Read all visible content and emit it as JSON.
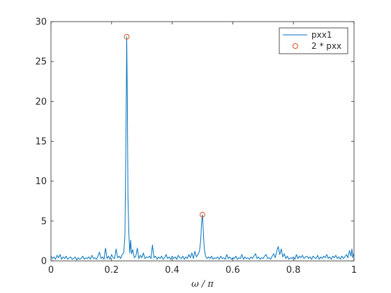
{
  "chart_data": {
    "type": "line",
    "title": "",
    "xlabel": "ω / π",
    "ylabel": "",
    "xlim": [
      0,
      1
    ],
    "ylim": [
      0,
      30
    ],
    "xticks": [
      0,
      0.2,
      0.4,
      0.6,
      0.8,
      1
    ],
    "xtick_labels": [
      "0",
      "0.2",
      "0.4",
      "0.6",
      "0.8",
      "1"
    ],
    "yticks": [
      0,
      5,
      10,
      15,
      20,
      25,
      30
    ],
    "ytick_labels": [
      "0",
      "5",
      "10",
      "15",
      "20",
      "25",
      "30"
    ],
    "grid": false,
    "legend_position": "top-right",
    "series": [
      {
        "name": "pxx1",
        "kind": "line",
        "color": "#0072BD",
        "points": [
          [
            0.0,
            0.6
          ],
          [
            0.005,
            0.3
          ],
          [
            0.01,
            0.5
          ],
          [
            0.015,
            0.2
          ],
          [
            0.02,
            0.7
          ],
          [
            0.025,
            0.4
          ],
          [
            0.03,
            0.8
          ],
          [
            0.035,
            0.2
          ],
          [
            0.04,
            0.5
          ],
          [
            0.045,
            0.3
          ],
          [
            0.05,
            0.6
          ],
          [
            0.055,
            0.2
          ],
          [
            0.06,
            0.4
          ],
          [
            0.065,
            0.5
          ],
          [
            0.07,
            0.2
          ],
          [
            0.075,
            0.3
          ],
          [
            0.08,
            0.5
          ],
          [
            0.085,
            0.1
          ],
          [
            0.09,
            0.4
          ],
          [
            0.095,
            0.2
          ],
          [
            0.1,
            0.3
          ],
          [
            0.105,
            0.6
          ],
          [
            0.11,
            0.2
          ],
          [
            0.115,
            0.4
          ],
          [
            0.12,
            0.3
          ],
          [
            0.125,
            0.5
          ],
          [
            0.13,
            0.2
          ],
          [
            0.135,
            0.7
          ],
          [
            0.14,
            0.3
          ],
          [
            0.145,
            0.4
          ],
          [
            0.15,
            0.2
          ],
          [
            0.155,
            0.6
          ],
          [
            0.16,
            1.1
          ],
          [
            0.165,
            0.3
          ],
          [
            0.17,
            0.5
          ],
          [
            0.175,
            0.2
          ],
          [
            0.18,
            1.6
          ],
          [
            0.185,
            0.3
          ],
          [
            0.19,
            0.6
          ],
          [
            0.195,
            0.2
          ],
          [
            0.2,
            0.8
          ],
          [
            0.205,
            0.4
          ],
          [
            0.21,
            0.3
          ],
          [
            0.215,
            1.5
          ],
          [
            0.22,
            0.4
          ],
          [
            0.225,
            0.6
          ],
          [
            0.23,
            0.3
          ],
          [
            0.235,
            0.8
          ],
          [
            0.24,
            1.0
          ],
          [
            0.244,
            3.0
          ],
          [
            0.247,
            14.0
          ],
          [
            0.249,
            22.5
          ],
          [
            0.25,
            28.1
          ],
          [
            0.252,
            20.0
          ],
          [
            0.254,
            8.0
          ],
          [
            0.257,
            3.5
          ],
          [
            0.26,
            1.0
          ],
          [
            0.263,
            2.6
          ],
          [
            0.266,
            0.9
          ],
          [
            0.27,
            1.4
          ],
          [
            0.275,
            0.4
          ],
          [
            0.28,
            0.6
          ],
          [
            0.285,
            1.6
          ],
          [
            0.29,
            0.3
          ],
          [
            0.295,
            0.7
          ],
          [
            0.3,
            0.4
          ],
          [
            0.305,
            1.0
          ],
          [
            0.31,
            0.3
          ],
          [
            0.315,
            0.5
          ],
          [
            0.32,
            0.4
          ],
          [
            0.325,
            0.6
          ],
          [
            0.33,
            0.3
          ],
          [
            0.335,
            2.0
          ],
          [
            0.34,
            0.4
          ],
          [
            0.345,
            0.6
          ],
          [
            0.35,
            0.2
          ],
          [
            0.355,
            0.5
          ],
          [
            0.36,
            0.3
          ],
          [
            0.365,
            0.6
          ],
          [
            0.37,
            0.2
          ],
          [
            0.375,
            0.4
          ],
          [
            0.38,
            0.8
          ],
          [
            0.385,
            0.3
          ],
          [
            0.39,
            0.5
          ],
          [
            0.395,
            0.2
          ],
          [
            0.4,
            0.6
          ],
          [
            0.405,
            0.3
          ],
          [
            0.41,
            0.5
          ],
          [
            0.415,
            0.2
          ],
          [
            0.42,
            0.7
          ],
          [
            0.425,
            0.4
          ],
          [
            0.43,
            0.3
          ],
          [
            0.435,
            0.6
          ],
          [
            0.44,
            0.2
          ],
          [
            0.445,
            0.5
          ],
          [
            0.45,
            0.3
          ],
          [
            0.455,
            0.8
          ],
          [
            0.46,
            0.4
          ],
          [
            0.465,
            1.0
          ],
          [
            0.47,
            0.3
          ],
          [
            0.475,
            1.2
          ],
          [
            0.48,
            0.5
          ],
          [
            0.485,
            0.8
          ],
          [
            0.49,
            1.2
          ],
          [
            0.494,
            2.5
          ],
          [
            0.497,
            4.8
          ],
          [
            0.5,
            5.8
          ],
          [
            0.503,
            3.5
          ],
          [
            0.506,
            1.5
          ],
          [
            0.51,
            0.6
          ],
          [
            0.515,
            0.3
          ],
          [
            0.52,
            0.5
          ],
          [
            0.525,
            0.3
          ],
          [
            0.53,
            0.6
          ],
          [
            0.535,
            0.2
          ],
          [
            0.54,
            0.4
          ],
          [
            0.545,
            0.3
          ],
          [
            0.55,
            0.5
          ],
          [
            0.555,
            0.2
          ],
          [
            0.56,
            0.6
          ],
          [
            0.565,
            0.3
          ],
          [
            0.57,
            0.4
          ],
          [
            0.575,
            0.2
          ],
          [
            0.58,
            0.8
          ],
          [
            0.585,
            0.3
          ],
          [
            0.59,
            0.5
          ],
          [
            0.595,
            0.2
          ],
          [
            0.6,
            0.4
          ],
          [
            0.605,
            0.3
          ],
          [
            0.61,
            0.6
          ],
          [
            0.615,
            0.2
          ],
          [
            0.62,
            0.4
          ],
          [
            0.625,
            0.3
          ],
          [
            0.63,
            0.8
          ],
          [
            0.635,
            0.2
          ],
          [
            0.64,
            0.5
          ],
          [
            0.645,
            0.3
          ],
          [
            0.65,
            0.4
          ],
          [
            0.655,
            0.2
          ],
          [
            0.66,
            0.5
          ],
          [
            0.665,
            0.3
          ],
          [
            0.67,
            0.6
          ],
          [
            0.675,
            0.9
          ],
          [
            0.68,
            0.3
          ],
          [
            0.685,
            0.5
          ],
          [
            0.69,
            0.2
          ],
          [
            0.695,
            0.4
          ],
          [
            0.7,
            0.3
          ],
          [
            0.705,
            0.6
          ],
          [
            0.71,
            0.8
          ],
          [
            0.715,
            0.3
          ],
          [
            0.72,
            0.4
          ],
          [
            0.725,
            0.2
          ],
          [
            0.73,
            0.6
          ],
          [
            0.735,
            0.9
          ],
          [
            0.74,
            0.4
          ],
          [
            0.745,
            1.2
          ],
          [
            0.75,
            1.8
          ],
          [
            0.755,
            0.8
          ],
          [
            0.76,
            1.5
          ],
          [
            0.765,
            0.5
          ],
          [
            0.77,
            0.9
          ],
          [
            0.775,
            0.3
          ],
          [
            0.78,
            0.6
          ],
          [
            0.785,
            0.2
          ],
          [
            0.79,
            0.4
          ],
          [
            0.795,
            0.3
          ],
          [
            0.8,
            0.5
          ],
          [
            0.805,
            0.2
          ],
          [
            0.81,
            0.8
          ],
          [
            0.815,
            0.3
          ],
          [
            0.82,
            0.6
          ],
          [
            0.825,
            0.4
          ],
          [
            0.83,
            0.7
          ],
          [
            0.835,
            0.3
          ],
          [
            0.84,
            0.5
          ],
          [
            0.845,
            0.6
          ],
          [
            0.85,
            0.3
          ],
          [
            0.855,
            0.5
          ],
          [
            0.86,
            0.2
          ],
          [
            0.865,
            0.6
          ],
          [
            0.87,
            0.4
          ],
          [
            0.875,
            0.3
          ],
          [
            0.88,
            0.7
          ],
          [
            0.885,
            0.2
          ],
          [
            0.89,
            0.5
          ],
          [
            0.895,
            0.3
          ],
          [
            0.9,
            0.6
          ],
          [
            0.905,
            0.4
          ],
          [
            0.91,
            0.8
          ],
          [
            0.915,
            0.3
          ],
          [
            0.92,
            0.5
          ],
          [
            0.925,
            0.2
          ],
          [
            0.93,
            0.6
          ],
          [
            0.935,
            0.4
          ],
          [
            0.94,
            0.7
          ],
          [
            0.945,
            0.3
          ],
          [
            0.95,
            0.5
          ],
          [
            0.955,
            0.2
          ],
          [
            0.96,
            0.6
          ],
          [
            0.965,
            0.3
          ],
          [
            0.97,
            0.5
          ],
          [
            0.975,
            0.8
          ],
          [
            0.98,
            0.4
          ],
          [
            0.985,
            1.3
          ],
          [
            0.99,
            0.6
          ],
          [
            0.993,
            1.5
          ],
          [
            0.996,
            0.4
          ],
          [
            1.0,
            1.0
          ]
        ]
      },
      {
        "name": "2 * pxx",
        "kind": "marker",
        "marker": "circle",
        "color": "#D95319",
        "points": [
          [
            0.25,
            28.1
          ],
          [
            0.5,
            5.8
          ]
        ]
      }
    ]
  }
}
